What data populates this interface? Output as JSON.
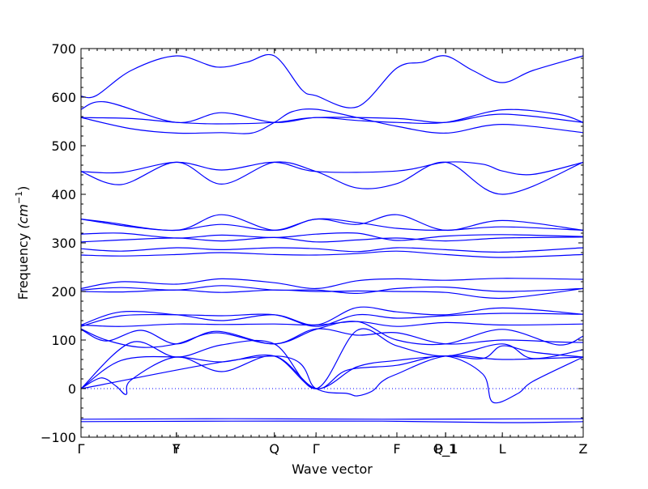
{
  "chart_data": {
    "type": "line",
    "xlabel": "Wave vector",
    "ylabel": "Frequency (cm⁻¹)",
    "ylabel_main": "Frequency ",
    "ylabel_unit": "(cm",
    "ylabel_exp": "−1",
    "ylabel_close": ")",
    "ylim": [
      -100,
      700
    ],
    "yticks": [
      -100,
      0,
      100,
      200,
      300,
      400,
      500,
      600,
      700
    ],
    "xlim": [
      0,
      1
    ],
    "high_symmetry_points": [
      {
        "label": "Γ",
        "x": 0.0
      },
      {
        "label": "Y",
        "x": 0.19
      },
      {
        "label": "F",
        "x": 0.19
      },
      {
        "label": "Q",
        "x": 0.385
      },
      {
        "label": "Γ",
        "x": 0.468
      },
      {
        "label": "F",
        "x": 0.629
      },
      {
        "label": "P_1",
        "x": 0.726
      },
      {
        "label": "Q_1",
        "x": 0.726
      },
      {
        "label": "L",
        "x": 0.839
      },
      {
        "label": "Z",
        "x": 1.0
      }
    ],
    "zero_line": {
      "y": 0,
      "style": "dotted"
    },
    "line_color": "#0000ff",
    "series": [
      {
        "x": [
          0,
          0.03,
          0.1,
          0.19,
          0.27,
          0.33,
          0.385,
          0.44,
          0.468,
          0.55,
          0.629,
          0.68,
          0.726,
          0.78,
          0.839,
          0.9,
          1.0
        ],
        "y": [
          602,
          603,
          655,
          685,
          662,
          672,
          685,
          615,
          603,
          580,
          660,
          672,
          685,
          655,
          630,
          655,
          685
        ]
      },
      {
        "x": [
          0,
          0.05,
          0.19,
          0.28,
          0.385,
          0.468,
          0.55,
          0.629,
          0.726,
          0.839,
          0.95,
          1.0
        ],
        "y": [
          575,
          590,
          548,
          568,
          548,
          558,
          552,
          548,
          548,
          574,
          565,
          548
        ]
      },
      {
        "x": [
          0,
          0.1,
          0.19,
          0.27,
          0.385,
          0.468,
          0.629,
          0.726,
          0.839,
          1.0
        ],
        "y": [
          558,
          556,
          548,
          545,
          548,
          558,
          556,
          548,
          565,
          548
        ]
      },
      {
        "x": [
          0,
          0.1,
          0.19,
          0.28,
          0.34,
          0.385,
          0.42,
          0.468,
          0.55,
          0.629,
          0.726,
          0.839,
          1.0
        ],
        "y": [
          558,
          535,
          526,
          527,
          526,
          548,
          570,
          575,
          558,
          540,
          526,
          544,
          527
        ]
      },
      {
        "x": [
          0,
          0.08,
          0.19,
          0.28,
          0.385,
          0.468,
          0.629,
          0.726,
          0.8,
          0.839,
          0.9,
          1.0
        ],
        "y": [
          447,
          445,
          466,
          450,
          466,
          447,
          448,
          466,
          462,
          448,
          441,
          466
        ]
      },
      {
        "x": [
          0,
          0.08,
          0.19,
          0.28,
          0.385,
          0.468,
          0.55,
          0.629,
          0.726,
          0.839,
          1.0
        ],
        "y": [
          447,
          420,
          466,
          421,
          466,
          447,
          413,
          422,
          466,
          400,
          466
        ]
      },
      {
        "x": [
          0,
          0.05,
          0.19,
          0.28,
          0.385,
          0.468,
          0.55,
          0.629,
          0.726,
          0.839,
          1.0
        ],
        "y": [
          349,
          343,
          326,
          358,
          326,
          349,
          338,
          358,
          326,
          346,
          326
        ]
      },
      {
        "x": [
          0,
          0.1,
          0.19,
          0.28,
          0.385,
          0.468,
          0.55,
          0.629,
          0.726,
          0.839,
          1.0
        ],
        "y": [
          349,
          333,
          326,
          338,
          326,
          349,
          342,
          330,
          326,
          333,
          326
        ]
      },
      {
        "x": [
          0,
          0.08,
          0.19,
          0.28,
          0.385,
          0.468,
          0.55,
          0.629,
          0.726,
          0.839,
          1.0
        ],
        "y": [
          318,
          320,
          310,
          316,
          311,
          318,
          320,
          305,
          314,
          317,
          313
        ]
      },
      {
        "x": [
          0,
          0.08,
          0.19,
          0.28,
          0.385,
          0.468,
          0.55,
          0.629,
          0.726,
          0.839,
          1.0
        ],
        "y": [
          302,
          306,
          310,
          304,
          311,
          302,
          306,
          310,
          304,
          310,
          312
        ]
      },
      {
        "x": [
          0,
          0.08,
          0.19,
          0.28,
          0.385,
          0.468,
          0.55,
          0.629,
          0.726,
          0.839,
          1.0
        ],
        "y": [
          288,
          283,
          290,
          286,
          290,
          288,
          282,
          290,
          286,
          281,
          290
        ]
      },
      {
        "x": [
          0,
          0.08,
          0.19,
          0.28,
          0.385,
          0.468,
          0.55,
          0.629,
          0.726,
          0.839,
          1.0
        ],
        "y": [
          275,
          273,
          276,
          280,
          276,
          275,
          278,
          283,
          276,
          270,
          276
        ]
      },
      {
        "x": [
          0,
          0.08,
          0.19,
          0.28,
          0.385,
          0.468,
          0.55,
          0.629,
          0.726,
          0.839,
          1.0
        ],
        "y": [
          206,
          220,
          215,
          226,
          218,
          206,
          222,
          226,
          223,
          227,
          225
        ]
      },
      {
        "x": [
          0,
          0.08,
          0.19,
          0.28,
          0.385,
          0.468,
          0.55,
          0.629,
          0.726,
          0.839,
          1.0
        ],
        "y": [
          203,
          208,
          203,
          212,
          203,
          203,
          196,
          206,
          209,
          200,
          206
        ]
      },
      {
        "x": [
          0,
          0.08,
          0.19,
          0.28,
          0.385,
          0.468,
          0.55,
          0.629,
          0.726,
          0.839,
          1.0
        ],
        "y": [
          200,
          199,
          203,
          198,
          203,
          200,
          201,
          200,
          198,
          186,
          206
        ]
      },
      {
        "x": [
          0,
          0.08,
          0.19,
          0.28,
          0.385,
          0.468,
          0.55,
          0.629,
          0.726,
          0.839,
          1.0
        ],
        "y": [
          131,
          158,
          152,
          140,
          152,
          131,
          167,
          158,
          152,
          166,
          153
        ]
      },
      {
        "x": [
          0,
          0.08,
          0.19,
          0.28,
          0.385,
          0.468,
          0.55,
          0.629,
          0.726,
          0.839,
          1.0
        ],
        "y": [
          128,
          150,
          152,
          150,
          152,
          128,
          152,
          145,
          150,
          155,
          153
        ]
      },
      {
        "x": [
          0,
          0.08,
          0.19,
          0.28,
          0.385,
          0.468,
          0.55,
          0.629,
          0.726,
          0.839,
          1.0
        ],
        "y": [
          131,
          128,
          133,
          132,
          133,
          131,
          138,
          128,
          136,
          131,
          133
        ]
      },
      {
        "x": [
          0,
          0.05,
          0.12,
          0.19,
          0.27,
          0.385,
          0.468,
          0.55,
          0.629,
          0.726,
          0.839,
          0.95,
          1.0
        ],
        "y": [
          122,
          98,
          120,
          92,
          118,
          92,
          122,
          138,
          100,
          92,
          122,
          90,
          108
        ]
      },
      {
        "x": [
          0,
          0.05,
          0.12,
          0.19,
          0.27,
          0.385,
          0.468,
          0.55,
          0.629,
          0.726,
          0.839,
          0.95,
          1.0
        ],
        "y": [
          123,
          100,
          85,
          92,
          115,
          92,
          123,
          110,
          115,
          92,
          100,
          96,
          95
        ]
      },
      {
        "x": [
          0,
          0.1,
          0.19,
          0.28,
          0.385,
          0.468,
          0.55,
          0.629,
          0.726,
          0.839,
          0.9,
          1.0
        ],
        "y": [
          0,
          95,
          65,
          90,
          92,
          0,
          120,
          88,
          67,
          92,
          62,
          80
        ]
      },
      {
        "x": [
          0,
          0.08,
          0.19,
          0.28,
          0.385,
          0.468,
          0.55,
          0.629,
          0.726,
          0.8,
          0.839,
          0.9,
          1.0
        ],
        "y": [
          0,
          58,
          65,
          55,
          67,
          0,
          45,
          58,
          67,
          62,
          88,
          75,
          65
        ]
      },
      {
        "x": [
          0,
          0.04,
          0.07,
          0.09,
          0.1,
          0.19,
          0.28,
          0.385,
          0.468,
          0.53,
          0.629,
          0.726,
          0.8,
          0.82,
          0.87,
          0.9,
          1.0
        ],
        "y": [
          0,
          22,
          5,
          -12,
          18,
          65,
          35,
          67,
          0,
          38,
          48,
          67,
          30,
          -28,
          -10,
          15,
          65
        ]
      },
      {
        "x": [
          0,
          0.385,
          0.468,
          0.53,
          0.55,
          0.58,
          0.6,
          0.629,
          0.726,
          0.839,
          1.0
        ],
        "y": [
          0,
          67,
          0,
          -10,
          -15,
          -5,
          15,
          30,
          67,
          60,
          65
        ]
      },
      {
        "x": [
          0,
          0.3,
          0.6,
          1.0
        ],
        "y": [
          -63,
          -62,
          -63,
          -62
        ]
      },
      {
        "x": [
          0,
          0.3,
          0.6,
          0.839,
          1.0
        ],
        "y": [
          -68,
          -67,
          -67,
          -70,
          -68
        ]
      }
    ]
  }
}
